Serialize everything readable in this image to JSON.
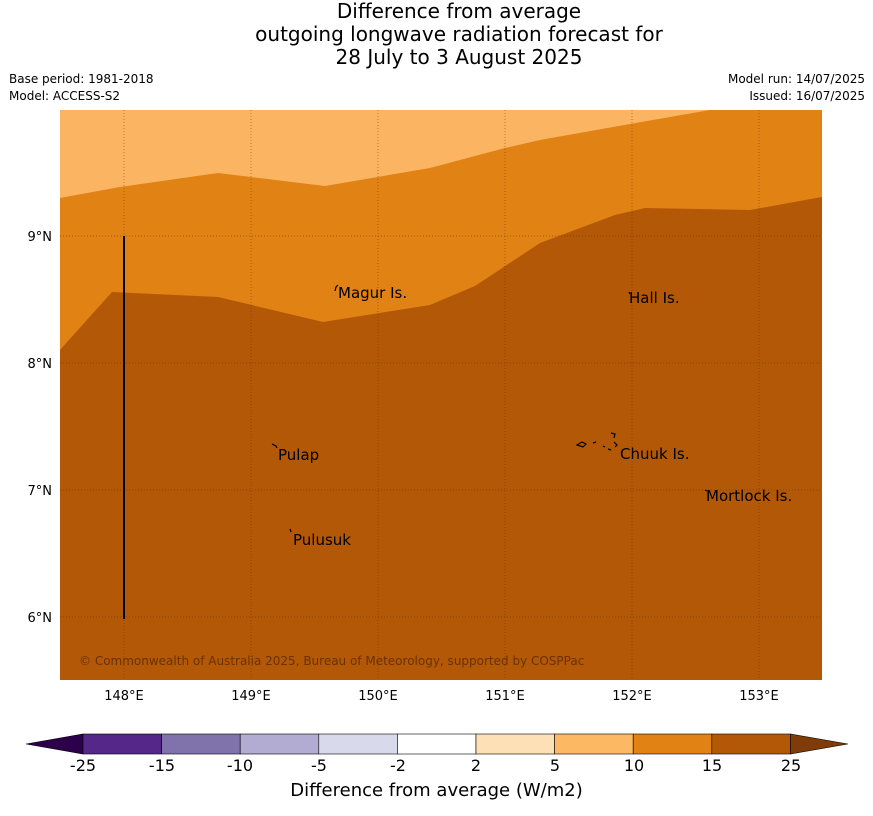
{
  "title": {
    "line1": "Difference from average",
    "line2": "outgoing longwave radiation forecast for",
    "line3": "28 July to 3 August 2025"
  },
  "meta": {
    "base_period": "Base period: 1981-2018",
    "model": "Model: ACCESS-S2",
    "model_run": "Model run: 14/07/2025",
    "issued": "Issued: 16/07/2025"
  },
  "map": {
    "lon_ticks": [
      "148°E",
      "149°E",
      "150°E",
      "151°E",
      "152°E",
      "153°E"
    ],
    "lat_ticks": [
      "9°N",
      "8°N",
      "7°N",
      "6°N"
    ],
    "places": [
      "Magur Is.",
      "Hall Is.",
      "Pulap",
      "Chuuk Is.",
      "Mortlock Is.",
      "Pulusuk"
    ],
    "copyright": "© Commonwealth of Australia 2025, Bureau of Meteorology, supported by COSPPac",
    "region_colors": {
      "band_5_10": "#fbb461",
      "band_10_15": "#e08214",
      "band_15_25": "#b35806"
    }
  },
  "colorbar": {
    "tick_labels": [
      "-25",
      "-15",
      "-10",
      "-5",
      "-2",
      "2",
      "5",
      "10",
      "15",
      "25"
    ],
    "colors": [
      "#2d004b",
      "#542788",
      "#8073ac",
      "#b2abd2",
      "#d8daeb",
      "#ffffff",
      "#fee0b6",
      "#fdb863",
      "#e08214",
      "#b35806",
      "#7f3b08"
    ],
    "label": "Difference from average (W/m2)"
  }
}
